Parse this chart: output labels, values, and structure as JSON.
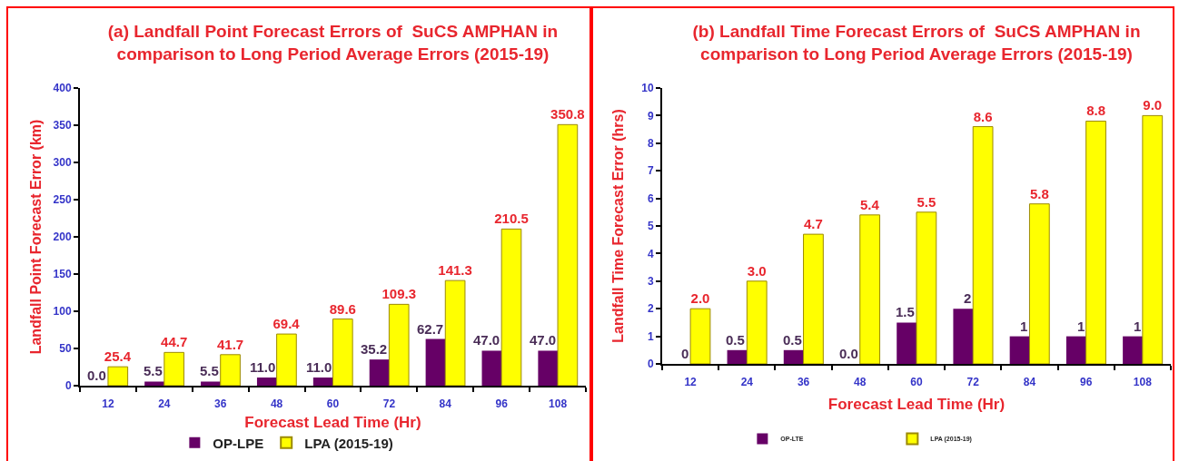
{
  "chart_data": [
    {
      "type": "bar",
      "title": "(a) Landfall Point Forecast Errors of  SuCS AMPHAN in\ncomparison to Long Period Average Errors (2015-19)",
      "xlabel": "Forecast Lead Time (Hr)",
      "ylabel": "Landfall Point Forecast Error (km)",
      "categories": [
        "12",
        "24",
        "36",
        "48",
        "60",
        "72",
        "84",
        "96",
        "108"
      ],
      "series": [
        {
          "name": "OP-LPE",
          "color": "#660066",
          "values": [
            0,
            5.5,
            5.5,
            11,
            11,
            35.2,
            62.7,
            47,
            47
          ],
          "value_labels": [
            "0.0",
            "5.5",
            "5.5",
            "11.0",
            "11.0",
            "35.2",
            "62.7",
            "47.0",
            "47.0"
          ]
        },
        {
          "name": "LPA (2015-19)",
          "color": "#ffff00",
          "values": [
            25.4,
            44.7,
            41.7,
            69.4,
            89.6,
            109.3,
            141.3,
            210.5,
            350.8
          ],
          "value_labels": [
            "25.4",
            "44.7",
            "41.7",
            "69.4",
            "89.6",
            "109.3",
            "141.3",
            "210.5",
            "350.8"
          ]
        }
      ],
      "ylim": [
        0,
        400
      ],
      "yticks": [
        0,
        50,
        100,
        150,
        200,
        250,
        300,
        350,
        400
      ],
      "legend": "bottom"
    },
    {
      "type": "bar",
      "title": "(b) Landfall Time Forecast Errors of  SuCS AMPHAN in\ncomparison to Long Period Average Errors (2015-19)",
      "xlabel": "Forecast Lead Time (Hr)",
      "ylabel": "Landfall Time Forecast Error (hrs)",
      "categories": [
        "12",
        "24",
        "36",
        "48",
        "60",
        "72",
        "84",
        "96",
        "108"
      ],
      "series": [
        {
          "name": "OP-LTE",
          "color": "#660066",
          "values": [
            0,
            0.5,
            0.5,
            0,
            1.5,
            2,
            1,
            1,
            1
          ],
          "value_labels": [
            "0",
            "0.5",
            "0.5",
            "0.0",
            "1.5",
            "2",
            "1",
            "1",
            "1"
          ]
        },
        {
          "name": "LPA (2015-19)",
          "color": "#ffff00",
          "values": [
            2.0,
            3.0,
            4.7,
            5.4,
            5.5,
            8.6,
            5.8,
            8.8,
            9.0
          ],
          "value_labels": [
            "2.0",
            "3.0",
            "4.7",
            "5.4",
            "5.5",
            "8.6",
            "5.8",
            "8.8",
            "9.0"
          ]
        }
      ],
      "ylim": [
        0,
        10
      ],
      "yticks": [
        0,
        1,
        2,
        3,
        4,
        5,
        6,
        7,
        8,
        9,
        10
      ],
      "legend": "bottom"
    }
  ]
}
